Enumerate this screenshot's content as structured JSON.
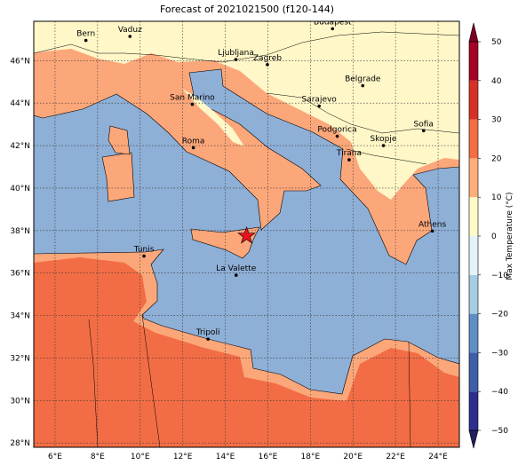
{
  "title": "Forecast of 2021021500 (f120-144)",
  "map": {
    "xlim": [
      5,
      25
    ],
    "ylim": [
      27.8,
      47.85
    ],
    "xticks": [
      {
        "value": 6,
        "label": "6°E"
      },
      {
        "value": 8,
        "label": "8°E"
      },
      {
        "value": 10,
        "label": "10°E"
      },
      {
        "value": 12,
        "label": "12°E"
      },
      {
        "value": 14,
        "label": "14°E"
      },
      {
        "value": 16,
        "label": "16°E"
      },
      {
        "value": 18,
        "label": "18°E"
      },
      {
        "value": 20,
        "label": "20°E"
      },
      {
        "value": 22,
        "label": "22°E"
      },
      {
        "value": 24,
        "label": "24°E"
      }
    ],
    "yticks": [
      {
        "value": 28,
        "label": "28°N"
      },
      {
        "value": 30,
        "label": "30°N"
      },
      {
        "value": 32,
        "label": "32°N"
      },
      {
        "value": 34,
        "label": "34°N"
      },
      {
        "value": 36,
        "label": "36°N"
      },
      {
        "value": 38,
        "label": "38°N"
      },
      {
        "value": 40,
        "label": "40°N"
      },
      {
        "value": 42,
        "label": "42°N"
      },
      {
        "value": 44,
        "label": "44°N"
      },
      {
        "value": 46,
        "label": "46°N"
      }
    ],
    "grid": true,
    "cities": [
      {
        "name": "Bern",
        "lon": 7.45,
        "lat": 46.95
      },
      {
        "name": "Vaduz",
        "lon": 9.52,
        "lat": 47.14
      },
      {
        "name": "Budapest",
        "lon": 19.04,
        "lat": 47.5
      },
      {
        "name": "Ljubljana",
        "lon": 14.5,
        "lat": 46.05
      },
      {
        "name": "Zagreb",
        "lon": 15.98,
        "lat": 45.81
      },
      {
        "name": "Belgrade",
        "lon": 20.46,
        "lat": 44.82
      },
      {
        "name": "San Marino",
        "lon": 12.45,
        "lat": 43.94
      },
      {
        "name": "Sarajevo",
        "lon": 18.41,
        "lat": 43.86
      },
      {
        "name": "Podgorica",
        "lon": 19.26,
        "lat": 42.44
      },
      {
        "name": "Sofia",
        "lon": 23.32,
        "lat": 42.7
      },
      {
        "name": "Skopje",
        "lon": 21.43,
        "lat": 42.0
      },
      {
        "name": "Roma",
        "lon": 12.5,
        "lat": 41.9
      },
      {
        "name": "Tirana",
        "lon": 19.82,
        "lat": 41.33
      },
      {
        "name": "Athens",
        "lon": 23.73,
        "lat": 37.98
      },
      {
        "name": "Tunis",
        "lon": 10.18,
        "lat": 36.8
      },
      {
        "name": "La Valette",
        "lon": 14.51,
        "lat": 35.9
      },
      {
        "name": "Tripoli",
        "lon": 13.19,
        "lat": 32.89
      }
    ],
    "marker": {
      "lon": 15.0,
      "lat": 37.75,
      "color": "#e8141c"
    }
  },
  "colorbar": {
    "label": "Max Temperature (°C)",
    "lim": [
      -50,
      50
    ],
    "ticks": [
      {
        "value": -50,
        "label": "−50"
      },
      {
        "value": -40,
        "label": "−40"
      },
      {
        "value": -30,
        "label": "−30"
      },
      {
        "value": -20,
        "label": "−20"
      },
      {
        "value": -10,
        "label": "−10"
      },
      0,
      10,
      20,
      30,
      40,
      50
    ],
    "colors": [
      "#2c2f8e",
      "#3d5fa8",
      "#5d8fc4",
      "#a6cde4",
      "#e3f4f9",
      "#fffbc6",
      "#fdae7a",
      "#f46d43",
      "#d73027",
      "#a50026"
    ],
    "under_color": "#20205e",
    "over_color": "#7f0022"
  }
}
